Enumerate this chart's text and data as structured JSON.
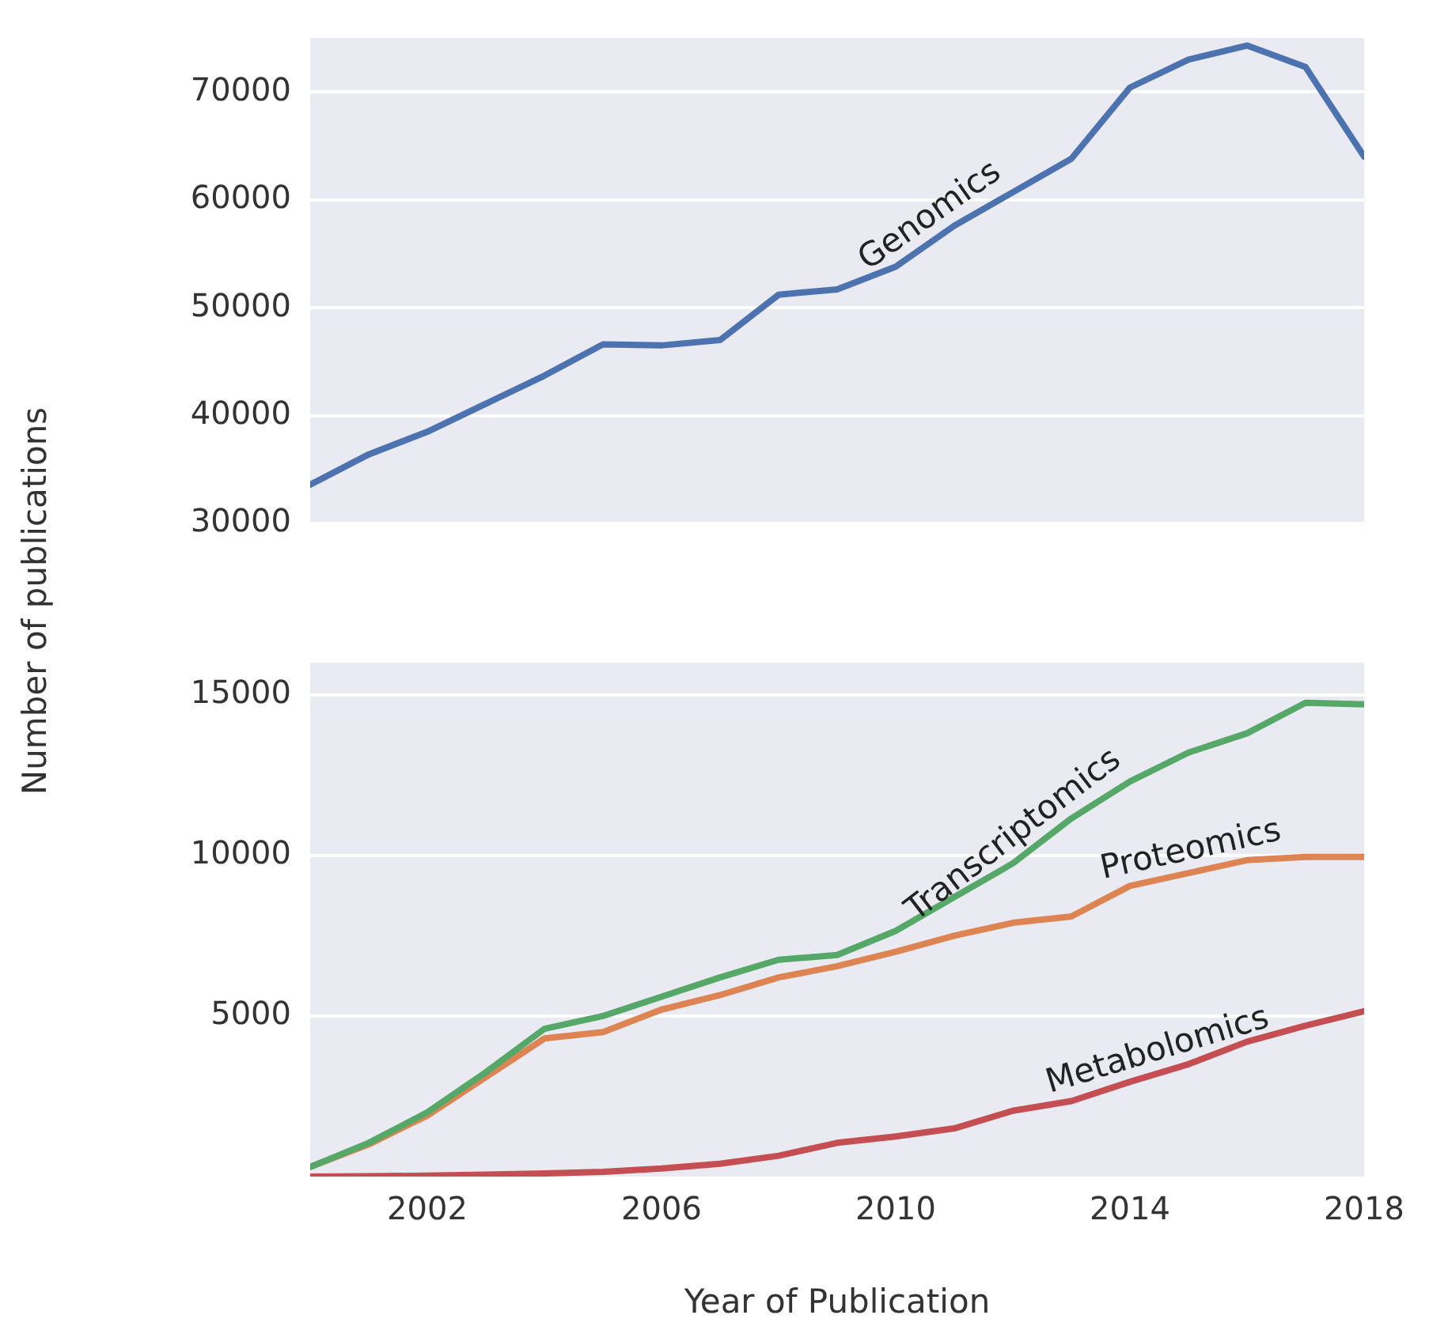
{
  "chart_data": [
    {
      "type": "line",
      "ylabel": "Number of publications",
      "x": [
        2000,
        2001,
        2002,
        2003,
        2004,
        2005,
        2006,
        2007,
        2008,
        2009,
        2010,
        2011,
        2012,
        2013,
        2014,
        2015,
        2016,
        2017,
        2018
      ],
      "series": [
        {
          "name": "Genomics",
          "color": "#4c72b0",
          "values": [
            33600,
            36400,
            38500,
            41100,
            43700,
            46600,
            46500,
            47000,
            51200,
            51700,
            53800,
            57600,
            60700,
            63800,
            70400,
            73000,
            74300,
            72300,
            64000
          ]
        }
      ],
      "xlim": [
        2000,
        2018
      ],
      "xticks": [
        2002,
        2006,
        2010,
        2014,
        2018
      ],
      "ylim": [
        30000,
        75000
      ],
      "yticks": [
        30000,
        40000,
        50000,
        60000,
        70000
      ],
      "grid": "y",
      "legend": false,
      "tick_labels": "y",
      "marker": "none",
      "line_style": "solid"
    },
    {
      "type": "line",
      "xlabel": "Year of Publication",
      "x": [
        2000,
        2001,
        2002,
        2003,
        2004,
        2005,
        2006,
        2007,
        2008,
        2009,
        2010,
        2011,
        2012,
        2013,
        2014,
        2015,
        2016,
        2017,
        2018
      ],
      "series": [
        {
          "name": "Transcriptomics",
          "color": "#55a868",
          "values": [
            300,
            1050,
            2000,
            3250,
            4600,
            5000,
            5600,
            6200,
            6750,
            6900,
            7650,
            8700,
            9750,
            11150,
            12300,
            13200,
            13800,
            14750,
            14700
          ]
        },
        {
          "name": "Proteomics",
          "color": "#dd8452",
          "values": [
            300,
            1000,
            1900,
            3100,
            4300,
            4500,
            5200,
            5650,
            6200,
            6550,
            7000,
            7500,
            7900,
            8100,
            9050,
            9450,
            9850,
            9950,
            9950
          ]
        },
        {
          "name": "Metabolomics",
          "color": "#c44e52",
          "values": [
            0,
            10,
            30,
            60,
            100,
            150,
            250,
            400,
            650,
            1050,
            1250,
            1500,
            2050,
            2350,
            2950,
            3500,
            4200,
            4700,
            5150
          ]
        }
      ],
      "xlim": [
        2000,
        2018
      ],
      "xticks": [
        2002,
        2006,
        2010,
        2014,
        2018
      ],
      "ylim": [
        0,
        16000
      ],
      "yticks": [
        5000,
        10000,
        15000
      ],
      "grid": "y",
      "legend": false,
      "marker": "none",
      "line_style": "solid"
    }
  ]
}
